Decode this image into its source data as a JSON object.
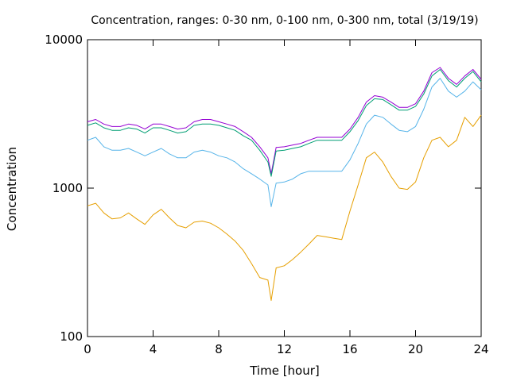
{
  "chart_data": {
    "type": "line",
    "title": "Concentration, ranges: 0-30 nm, 0-100 nm, 0-300 nm, total (3/19/19)",
    "xlabel": "Time [hour]",
    "ylabel": "Concentration",
    "xlim": [
      0,
      24
    ],
    "ylim": [
      100,
      10000
    ],
    "yscale": "log",
    "grid": false,
    "x_ticks": [
      0,
      4,
      8,
      12,
      16,
      20,
      24
    ],
    "y_ticks": [
      100,
      1000,
      10000
    ],
    "colors": {
      "range_0_30nm": "#e69f00",
      "range_0_100nm": "#56b4e9",
      "range_0_300nm": "#009e73",
      "total": "#9400d3"
    },
    "series": [
      {
        "key": "total",
        "x": [
          0,
          0.5,
          1,
          1.5,
          2,
          2.5,
          3,
          3.5,
          4,
          4.5,
          5,
          5.5,
          6,
          6.5,
          7,
          7.5,
          8,
          8.5,
          9,
          9.5,
          10,
          10.5,
          11,
          11.2,
          11.5,
          12,
          12.5,
          13,
          13.5,
          14,
          14.5,
          15,
          15.5,
          16,
          16.5,
          17,
          17.5,
          18,
          18.5,
          19,
          19.5,
          20,
          20.5,
          21,
          21.5,
          22,
          22.5,
          23,
          23.5,
          24
        ],
        "y": [
          2800,
          2900,
          2700,
          2600,
          2600,
          2700,
          2650,
          2500,
          2700,
          2700,
          2600,
          2500,
          2550,
          2800,
          2900,
          2900,
          2800,
          2700,
          2600,
          2400,
          2200,
          1900,
          1600,
          1250,
          1880,
          1900,
          1950,
          2000,
          2100,
          2200,
          2200,
          2200,
          2200,
          2500,
          3000,
          3800,
          4200,
          4100,
          3800,
          3500,
          3500,
          3700,
          4500,
          6000,
          6500,
          5500,
          5000,
          5700,
          6300,
          5400
        ]
      },
      {
        "key": "range_0_300nm",
        "x": [
          0,
          0.5,
          1,
          1.5,
          2,
          2.5,
          3,
          3.5,
          4,
          4.5,
          5,
          5.5,
          6,
          6.5,
          7,
          7.5,
          8,
          8.5,
          9,
          9.5,
          10,
          10.5,
          11,
          11.2,
          11.5,
          12,
          12.5,
          13,
          13.5,
          14,
          14.5,
          15,
          15.5,
          16,
          16.5,
          17,
          17.5,
          18,
          18.5,
          19,
          19.5,
          20,
          20.5,
          21,
          21.5,
          22,
          22.5,
          23,
          23.5,
          24
        ],
        "y": [
          2650,
          2750,
          2550,
          2450,
          2450,
          2550,
          2500,
          2350,
          2550,
          2550,
          2450,
          2350,
          2400,
          2650,
          2700,
          2700,
          2650,
          2550,
          2450,
          2250,
          2100,
          1800,
          1500,
          1200,
          1780,
          1800,
          1850,
          1900,
          2000,
          2100,
          2100,
          2100,
          2100,
          2400,
          2850,
          3600,
          4000,
          3950,
          3650,
          3350,
          3350,
          3550,
          4300,
          5700,
          6300,
          5300,
          4800,
          5500,
          6100,
          5200
        ]
      },
      {
        "key": "range_0_100nm",
        "x": [
          0,
          0.5,
          1,
          1.5,
          2,
          2.5,
          3,
          3.5,
          4,
          4.5,
          5,
          5.5,
          6,
          6.5,
          7,
          7.5,
          8,
          8.5,
          9,
          9.5,
          10,
          10.5,
          11,
          11.2,
          11.5,
          12,
          12.5,
          13,
          13.5,
          14,
          14.5,
          15,
          15.5,
          16,
          16.5,
          17,
          17.5,
          18,
          18.5,
          19,
          19.5,
          20,
          20.5,
          21,
          21.5,
          22,
          22.5,
          23,
          23.5,
          24
        ],
        "y": [
          2100,
          2200,
          1900,
          1800,
          1800,
          1850,
          1750,
          1650,
          1750,
          1850,
          1700,
          1600,
          1600,
          1750,
          1800,
          1750,
          1650,
          1600,
          1500,
          1350,
          1250,
          1150,
          1050,
          750,
          1080,
          1100,
          1150,
          1250,
          1300,
          1300,
          1300,
          1300,
          1300,
          1550,
          2000,
          2700,
          3100,
          3000,
          2700,
          2450,
          2400,
          2600,
          3400,
          4800,
          5500,
          4500,
          4100,
          4500,
          5200,
          4600
        ]
      },
      {
        "key": "range_0_30nm",
        "x": [
          0,
          0.5,
          1,
          1.5,
          2,
          2.5,
          3,
          3.5,
          4,
          4.5,
          5,
          5.5,
          6,
          6.5,
          7,
          7.5,
          8,
          8.5,
          9,
          9.5,
          10,
          10.5,
          11,
          11.2,
          11.5,
          12,
          12.5,
          13,
          13.5,
          14,
          14.5,
          15,
          15.5,
          16,
          16.5,
          17,
          17.5,
          18,
          18.5,
          19,
          19.5,
          20,
          20.5,
          21,
          21.5,
          22,
          22.5,
          23,
          23.5,
          24
        ],
        "y": [
          760,
          790,
          680,
          620,
          630,
          680,
          620,
          570,
          660,
          720,
          630,
          560,
          540,
          590,
          600,
          580,
          540,
          490,
          440,
          380,
          310,
          250,
          240,
          175,
          290,
          300,
          330,
          370,
          420,
          480,
          470,
          460,
          450,
          700,
          1050,
          1600,
          1750,
          1500,
          1200,
          1000,
          980,
          1100,
          1600,
          2100,
          2200,
          1900,
          2100,
          3000,
          2600,
          3100
        ]
      }
    ]
  }
}
